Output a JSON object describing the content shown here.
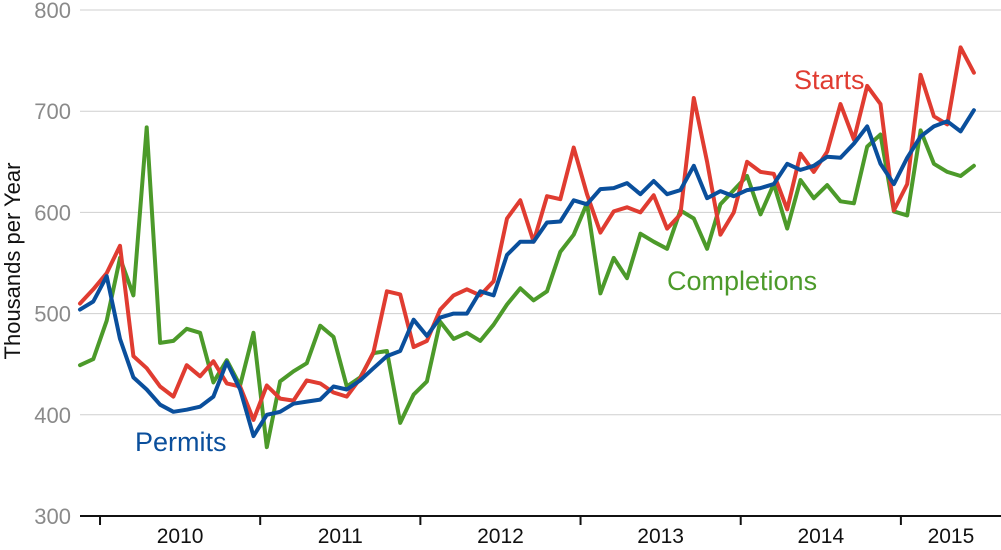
{
  "chart_data": {
    "type": "line",
    "title": "",
    "xlabel": "",
    "ylabel": "Thousands  per Year",
    "ylim": [
      300,
      800
    ],
    "yticks": [
      "300",
      "400",
      "500",
      "600",
      "700",
      "800"
    ],
    "x_start": 2009.875,
    "x_step": 0.0833,
    "x_range": [
      2009.875,
      2015.625
    ],
    "year_labels": [
      "2010",
      "2011",
      "2012",
      "2013",
      "2014",
      "2015"
    ],
    "grid": true,
    "series": [
      {
        "name": "Starts",
        "color": "#e03c31",
        "values": [
          510,
          524,
          540,
          567,
          458,
          446,
          428,
          418,
          449,
          438,
          453,
          431,
          428,
          395,
          429,
          416,
          414,
          434,
          431,
          422,
          418,
          436,
          462,
          522,
          519,
          467,
          473,
          504,
          518,
          524,
          518,
          532,
          594,
          612,
          571,
          616,
          613,
          664,
          618,
          580,
          601,
          605,
          600,
          617,
          584,
          598,
          713,
          650,
          578,
          600,
          650,
          640,
          638,
          603,
          658,
          640,
          660,
          707,
          672,
          725,
          707,
          602,
          628,
          736,
          695,
          687,
          763,
          738
        ]
      },
      {
        "name": "Permits",
        "color": "#0a4f9c",
        "values": [
          504,
          512,
          537,
          475,
          437,
          425,
          410,
          403,
          405,
          408,
          418,
          452,
          425,
          379,
          400,
          403,
          411,
          413,
          415,
          428,
          425,
          434,
          446,
          458,
          463,
          494,
          478,
          496,
          500,
          500,
          522,
          518,
          558,
          571,
          571,
          590,
          591,
          612,
          608,
          623,
          624,
          629,
          618,
          631,
          618,
          622,
          646,
          614,
          621,
          616,
          622,
          624,
          628,
          648,
          642,
          646,
          655,
          654,
          668,
          685,
          648,
          628,
          654,
          675,
          685,
          690,
          680,
          701
        ]
      },
      {
        "name": "Completions",
        "color": "#4c9a2a",
        "values": [
          449,
          455,
          493,
          555,
          518,
          684,
          471,
          473,
          485,
          481,
          432,
          454,
          429,
          481,
          368,
          433,
          443,
          451,
          488,
          477,
          428,
          437,
          461,
          463,
          392,
          420,
          433,
          492,
          475,
          481,
          473,
          489,
          509,
          525,
          513,
          522,
          561,
          578,
          609,
          520,
          555,
          535,
          579,
          571,
          564,
          602,
          594,
          564,
          608,
          622,
          636,
          598,
          628,
          584,
          632,
          614,
          627,
          611,
          609,
          665,
          677,
          601,
          597,
          681,
          648,
          640,
          636,
          646
        ]
      }
    ]
  }
}
